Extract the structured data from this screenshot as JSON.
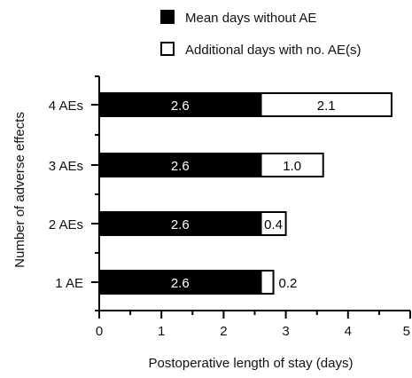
{
  "chart_data": {
    "type": "bar",
    "orientation": "horizontal",
    "stacked": true,
    "title": "",
    "xlabel": "Postoperative length of stay (days)",
    "ylabel": "Number of adverse effects",
    "categories": [
      "4 AEs",
      "3 AEs",
      "2 AEs",
      "1 AE"
    ],
    "series": [
      {
        "name": "Mean days without AE",
        "values": [
          2.6,
          2.6,
          2.6,
          2.6
        ],
        "labels": [
          "2.6",
          "2.6",
          "2.6",
          "2.6"
        ],
        "color": "#000000"
      },
      {
        "name": "Additional days with no. AE(s)",
        "values": [
          2.1,
          1.0,
          0.4,
          0.2
        ],
        "labels": [
          "2.1",
          "1.0",
          "0.4",
          "0.2"
        ],
        "color": "#ffffff"
      }
    ],
    "xlim": [
      0,
      5
    ],
    "xticks": [
      0,
      1,
      2,
      3,
      4,
      5
    ],
    "xtick_labels": [
      "0",
      "1",
      "2",
      "3",
      "4",
      "5"
    ],
    "grid": false,
    "legend_position": "top"
  }
}
